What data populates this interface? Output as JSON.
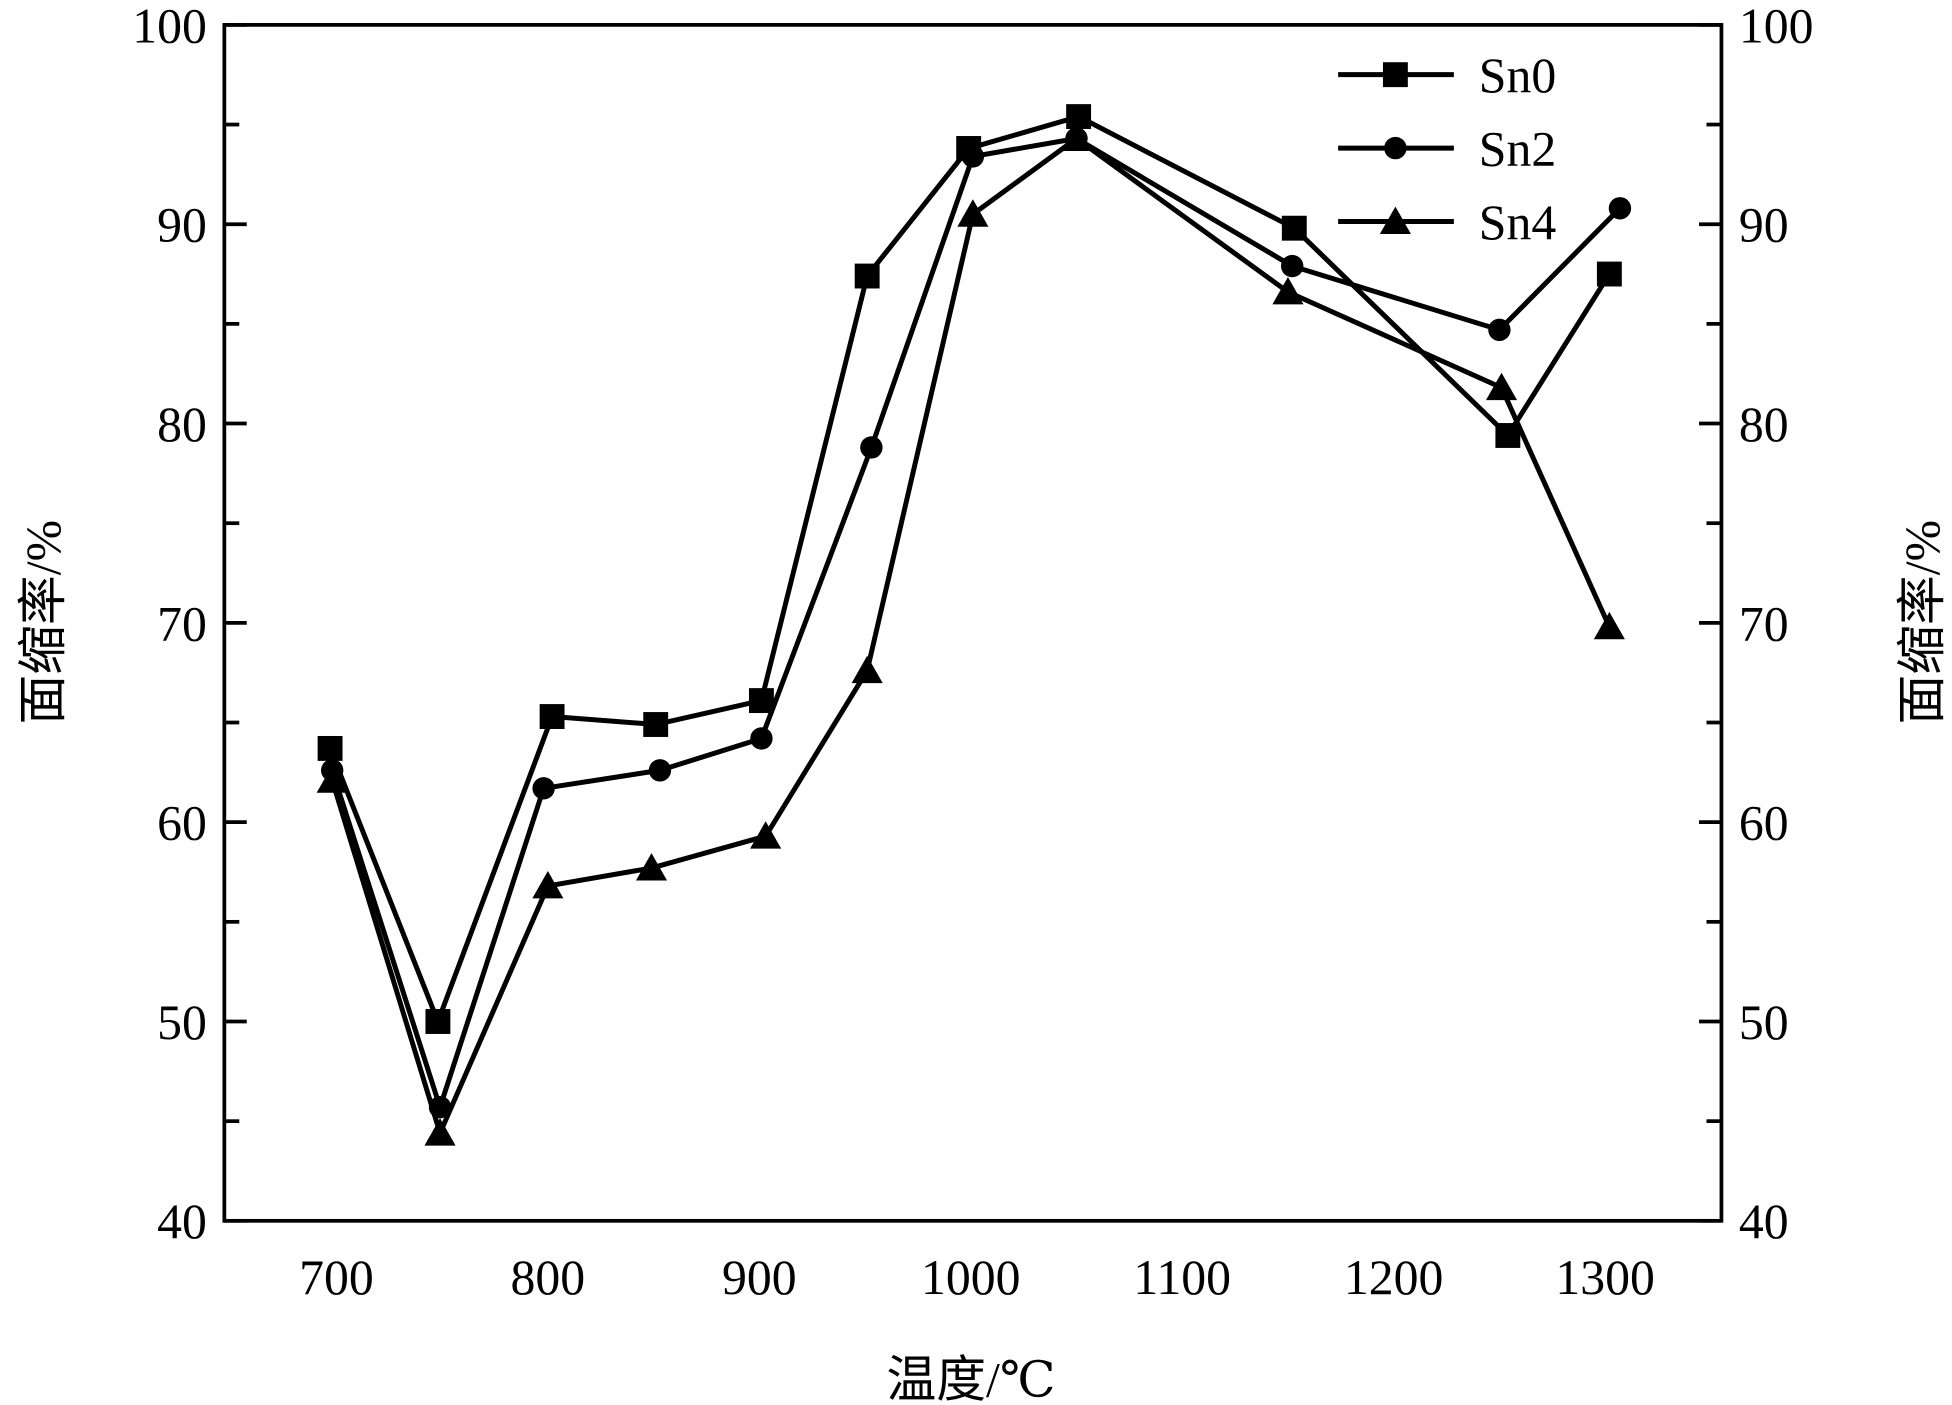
{
  "chart_data": {
    "type": "line",
    "title": "",
    "xlabel": "温度/℃",
    "ylabel": "面缩率/%",
    "ylabel_right": "面缩率/%",
    "xlim": [
      647,
      1355
    ],
    "ylim": [
      40,
      100
    ],
    "xticks": [
      700,
      800,
      900,
      1000,
      1100,
      1200,
      1300
    ],
    "yticks": [
      40,
      50,
      60,
      70,
      80,
      90,
      100
    ],
    "legend_position": "top-right",
    "grid": false,
    "series": [
      {
        "name": "Sn0",
        "marker": "square",
        "x": [
          697,
          748,
          802,
          851,
          901,
          951,
          999,
          1051,
          1153,
          1254,
          1302
        ],
        "y": [
          63.7,
          50.0,
          65.3,
          64.9,
          66.1,
          87.4,
          93.8,
          95.4,
          89.8,
          79.4,
          87.5
        ]
      },
      {
        "name": "Sn2",
        "marker": "circle",
        "x": [
          698,
          749,
          798,
          853,
          901,
          953,
          1001,
          1050,
          1152,
          1250,
          1307
        ],
        "y": [
          62.6,
          45.7,
          61.7,
          62.6,
          64.2,
          78.8,
          93.4,
          94.3,
          87.9,
          84.7,
          90.8
        ]
      },
      {
        "name": "Sn4",
        "marker": "triangle",
        "x": [
          698,
          749,
          800,
          849,
          903,
          951,
          1001,
          1050,
          1150,
          1251,
          1302
        ],
        "y": [
          62.1,
          44.4,
          56.8,
          57.7,
          59.3,
          67.6,
          90.5,
          94.3,
          86.6,
          81.8,
          69.8
        ]
      }
    ]
  }
}
